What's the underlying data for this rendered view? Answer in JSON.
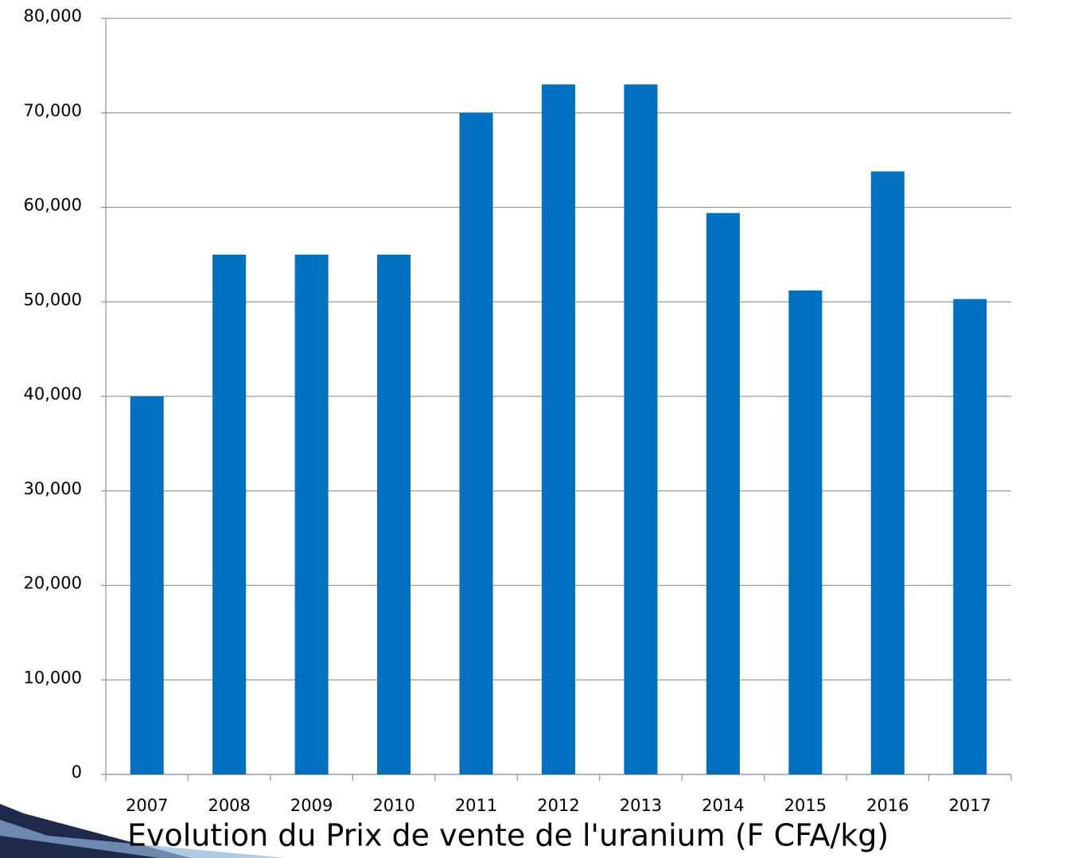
{
  "chart_data": {
    "type": "bar",
    "title": "Evolution du Prix de vente de l'uranium (F CFA/kg)",
    "categories": [
      "2007",
      "2008",
      "2009",
      "2010",
      "2011",
      "2012",
      "2013",
      "2014",
      "2015",
      "2016",
      "2017"
    ],
    "values": [
      40000,
      55000,
      55000,
      55000,
      70000,
      73000,
      73000,
      59400,
      51200,
      63800,
      50300
    ],
    "color": "#0070c0",
    "ylim": [
      0,
      80000
    ],
    "yticks": [
      0,
      {
        "value": 10000,
        "label": "10,000"
      },
      {
        "value": 20000,
        "label": "20,000"
      },
      {
        "value": 30000,
        "label": "30,000"
      },
      {
        "value": 40000,
        "label": "40,000"
      },
      {
        "value": 50000,
        "label": "50,000"
      },
      {
        "value": 60000,
        "label": "60,000"
      },
      {
        "value": 70000,
        "label": "70,000"
      },
      {
        "value": 80000,
        "label": "80,000"
      }
    ],
    "grid": true
  }
}
